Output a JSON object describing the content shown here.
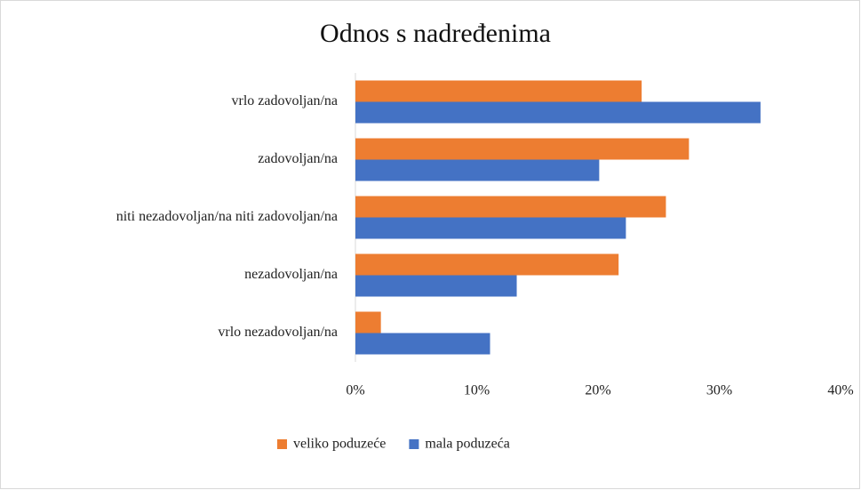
{
  "chart_data": {
    "type": "barh",
    "title": "Odnos s nadređenima",
    "categories": [
      "vrlo zadovoljan/na",
      "zadovoljan/na",
      "niti nezadovoljan/na niti zadovoljan/na",
      "nezadovoljan/na",
      "vrlo nezadovoljan/na"
    ],
    "series": [
      {
        "name": "veliko poduzeće",
        "color": "#ed7d31",
        "values": [
          23.6,
          27.5,
          25.6,
          21.7,
          2.1
        ]
      },
      {
        "name": "mala poduzeća",
        "color": "#4472c4",
        "values": [
          33.4,
          20.1,
          22.3,
          13.3,
          11.1
        ]
      }
    ],
    "xlim": [
      0,
      40
    ],
    "xticks": [
      {
        "value": 0,
        "label": "0%"
      },
      {
        "value": 10,
        "label": "10%"
      },
      {
        "value": 20,
        "label": "20%"
      },
      {
        "value": 30,
        "label": "30%"
      },
      {
        "value": 40,
        "label": "40%"
      }
    ],
    "grid": false,
    "legend": "bottom"
  }
}
